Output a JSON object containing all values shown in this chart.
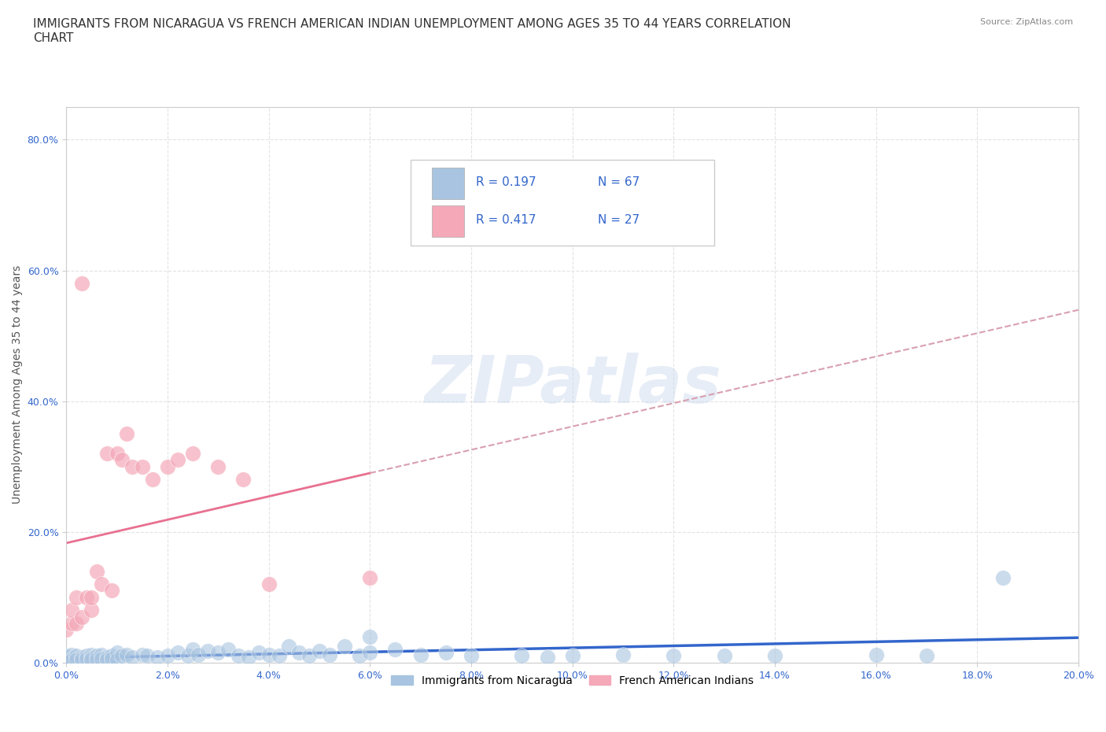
{
  "title": "IMMIGRANTS FROM NICARAGUA VS FRENCH AMERICAN INDIAN UNEMPLOYMENT AMONG AGES 35 TO 44 YEARS CORRELATION\nCHART",
  "source": "Source: ZipAtlas.com",
  "ylabel": "Unemployment Among Ages 35 to 44 years",
  "xlim": [
    0.0,
    0.2
  ],
  "ylim": [
    0.0,
    0.85
  ],
  "xticks": [
    0.0,
    0.02,
    0.04,
    0.06,
    0.08,
    0.1,
    0.12,
    0.14,
    0.16,
    0.18,
    0.2
  ],
  "yticks": [
    0.0,
    0.2,
    0.4,
    0.6,
    0.8
  ],
  "series1_label": "Immigrants from Nicaragua",
  "series2_label": "French American Indians",
  "color1": "#a8c4e0",
  "color2": "#f4a8b8",
  "trendline1_color": "#3366cc",
  "trendline2_color": "#e87090",
  "trendline_dashed_color": "#d8a0b0",
  "background_color": "#ffffff",
  "grid_color": "#e0e0e0",
  "watermark": "ZIPatlas",
  "legend_R1": "R = 0.197",
  "legend_N1": "N = 67",
  "legend_R2": "R = 0.417",
  "legend_N2": "N = 27",
  "title_fontsize": 11,
  "axis_label_fontsize": 10,
  "tick_fontsize": 9,
  "scatter1_x": [
    0.0,
    0.0,
    0.0,
    0.001,
    0.001,
    0.001,
    0.002,
    0.002,
    0.003,
    0.003,
    0.004,
    0.004,
    0.005,
    0.005,
    0.005,
    0.006,
    0.006,
    0.007,
    0.007,
    0.008,
    0.008,
    0.009,
    0.009,
    0.01,
    0.01,
    0.011,
    0.012,
    0.013,
    0.015,
    0.016,
    0.018,
    0.02,
    0.022,
    0.024,
    0.025,
    0.026,
    0.028,
    0.03,
    0.032,
    0.034,
    0.036,
    0.038,
    0.04,
    0.042,
    0.044,
    0.046,
    0.048,
    0.05,
    0.052,
    0.055,
    0.058,
    0.06,
    0.065,
    0.07,
    0.075,
    0.08,
    0.09,
    0.095,
    0.1,
    0.11,
    0.12,
    0.14,
    0.16,
    0.17,
    0.185,
    0.06,
    0.13
  ],
  "scatter1_y": [
    0.01,
    0.005,
    0.008,
    0.012,
    0.006,
    0.003,
    0.01,
    0.005,
    0.008,
    0.004,
    0.01,
    0.006,
    0.012,
    0.007,
    0.004,
    0.01,
    0.005,
    0.012,
    0.006,
    0.008,
    0.004,
    0.01,
    0.006,
    0.015,
    0.005,
    0.01,
    0.012,
    0.008,
    0.012,
    0.01,
    0.008,
    0.01,
    0.015,
    0.01,
    0.02,
    0.012,
    0.018,
    0.015,
    0.02,
    0.01,
    0.008,
    0.015,
    0.012,
    0.01,
    0.025,
    0.015,
    0.01,
    0.018,
    0.012,
    0.025,
    0.01,
    0.015,
    0.02,
    0.012,
    0.015,
    0.01,
    0.01,
    0.008,
    0.01,
    0.012,
    0.01,
    0.01,
    0.012,
    0.01,
    0.13,
    0.04,
    0.01
  ],
  "scatter2_x": [
    0.0,
    0.001,
    0.001,
    0.002,
    0.002,
    0.003,
    0.003,
    0.004,
    0.005,
    0.005,
    0.006,
    0.007,
    0.008,
    0.009,
    0.01,
    0.011,
    0.012,
    0.013,
    0.015,
    0.017,
    0.02,
    0.022,
    0.025,
    0.03,
    0.035,
    0.04,
    0.06
  ],
  "scatter2_y": [
    0.05,
    0.06,
    0.08,
    0.06,
    0.1,
    0.07,
    0.58,
    0.1,
    0.08,
    0.1,
    0.14,
    0.12,
    0.32,
    0.11,
    0.32,
    0.31,
    0.35,
    0.3,
    0.3,
    0.28,
    0.3,
    0.31,
    0.32,
    0.3,
    0.28,
    0.12,
    0.13
  ]
}
